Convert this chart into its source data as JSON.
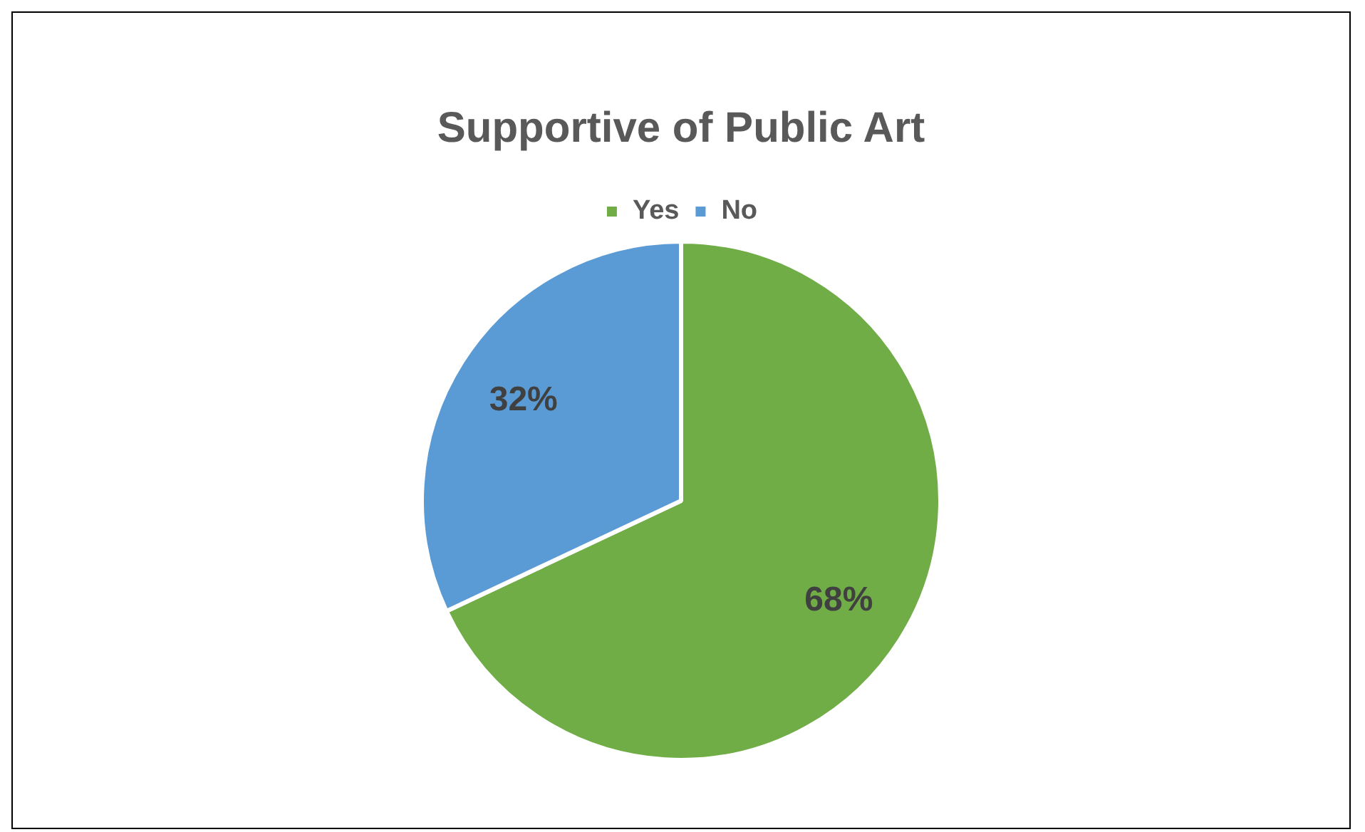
{
  "chart_data": {
    "type": "pie",
    "title": "Supportive of Public Art",
    "categories": [
      "Yes",
      "No"
    ],
    "values": [
      68,
      32
    ],
    "colors": [
      "#70ad47",
      "#5b9bd5"
    ],
    "value_labels": [
      "68%",
      "32%"
    ],
    "legend": "top"
  }
}
